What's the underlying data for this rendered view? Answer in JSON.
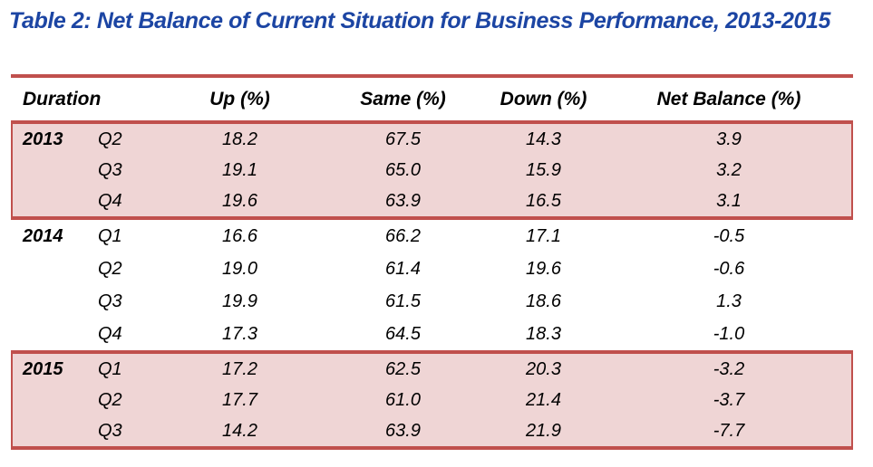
{
  "title": "Table 2: Net Balance of Current Situation for Business Performance, 2013-2015",
  "colors": {
    "title_blue": "#1C45A3",
    "accent_red": "#C0504D",
    "band_pink": "#EFD5D5",
    "text_black": "#000000",
    "background": "#FFFFFF"
  },
  "table": {
    "columns": [
      "Duration",
      "Up (%)",
      "Same (%)",
      "Down (%)",
      "Net Balance (%)"
    ],
    "groups": [
      {
        "year": "2013",
        "shaded": true,
        "rows": [
          {
            "quarter": "Q2",
            "up": "18.2",
            "same": "67.5",
            "down": "14.3",
            "net": "3.9"
          },
          {
            "quarter": "Q3",
            "up": "19.1",
            "same": "65.0",
            "down": "15.9",
            "net": "3.2"
          },
          {
            "quarter": "Q4",
            "up": "19.6",
            "same": "63.9",
            "down": "16.5",
            "net": "3.1"
          }
        ]
      },
      {
        "year": "2014",
        "shaded": false,
        "rows": [
          {
            "quarter": "Q1",
            "up": "16.6",
            "same": "66.2",
            "down": "17.1",
            "net": "-0.5"
          },
          {
            "quarter": "Q2",
            "up": "19.0",
            "same": "61.4",
            "down": "19.6",
            "net": "-0.6"
          },
          {
            "quarter": "Q3",
            "up": "19.9",
            "same": "61.5",
            "down": "18.6",
            "net": "1.3"
          },
          {
            "quarter": "Q4",
            "up": "17.3",
            "same": "64.5",
            "down": "18.3",
            "net": "-1.0"
          }
        ]
      },
      {
        "year": "2015",
        "shaded": true,
        "rows": [
          {
            "quarter": "Q1",
            "up": "17.2",
            "same": "62.5",
            "down": "20.3",
            "net": "-3.2"
          },
          {
            "quarter": "Q2",
            "up": "17.7",
            "same": "61.0",
            "down": "21.4",
            "net": "-3.7"
          },
          {
            "quarter": "Q3",
            "up": "14.2",
            "same": "63.9",
            "down": "21.9",
            "net": "-7.7"
          }
        ]
      }
    ]
  }
}
